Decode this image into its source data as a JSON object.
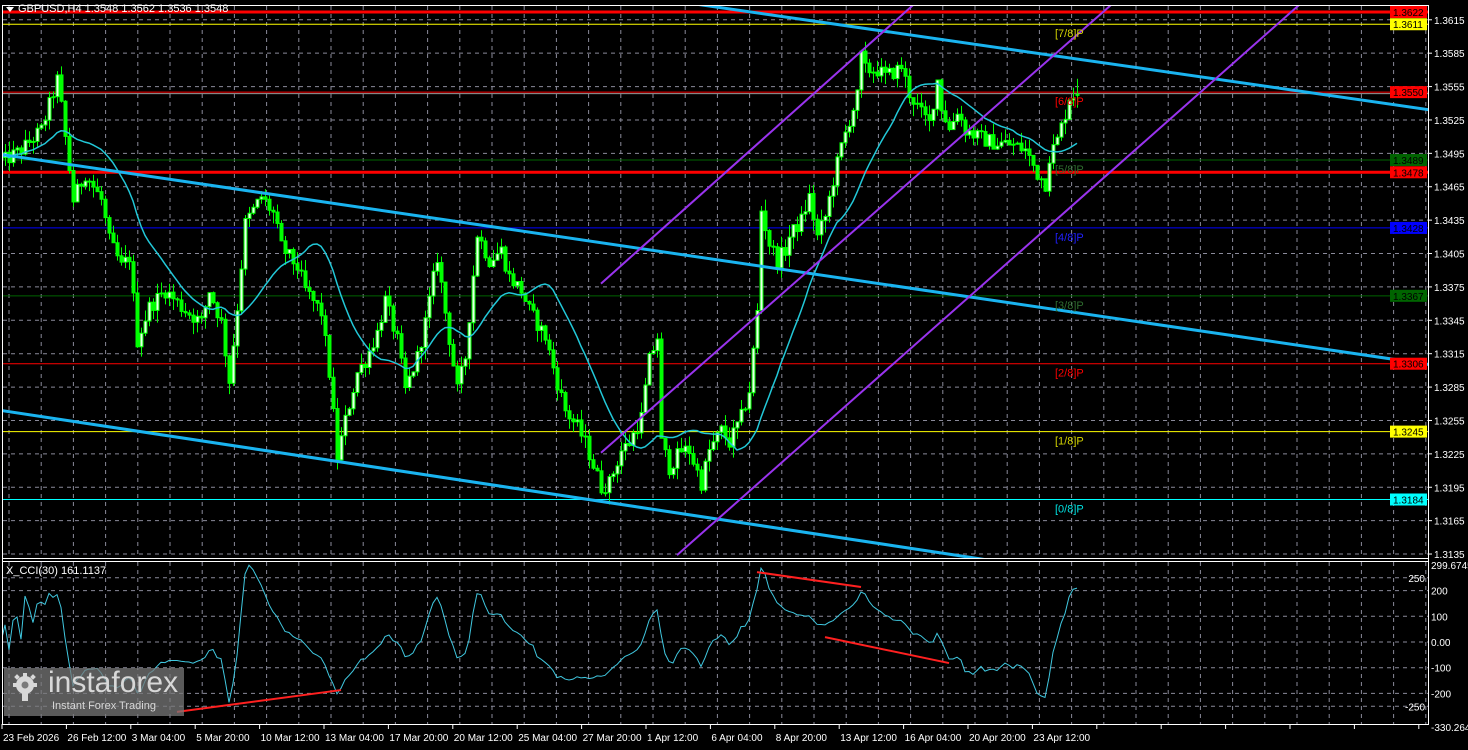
{
  "header": {
    "title": "GBPUSD,H4 1.3548 1.3562 1.3536 1.3548"
  },
  "cci_panel": {
    "label": "X_CCI(30) 161.1137"
  },
  "watermark": {
    "brand": "instaforex",
    "tagline": "Instant Forex Trading"
  },
  "chart_data": {
    "type": "candlestick",
    "timeframe": "H4",
    "candle_color": "#00ff00",
    "ylim": [
      1.3131,
      1.3628
    ],
    "grid": true,
    "y_ticks": [
      "1.3615",
      "1.3585",
      "1.3555",
      "1.3525",
      "1.3495",
      "1.3465",
      "1.3435",
      "1.3405",
      "1.3375",
      "1.3345",
      "1.3315",
      "1.3285",
      "1.3255",
      "1.3225",
      "1.3195",
      "1.3165",
      "1.3135"
    ],
    "x_tick_labels": [
      "23 Feb 2026",
      "26 Feb 12:00",
      "3 Mar 04:00",
      "5 Mar 20:00",
      "10 Mar 12:00",
      "13 Mar 04:00",
      "17 Mar 20:00",
      "20 Mar 12:00",
      "25 Mar 04:00",
      "27 Mar 20:00",
      "1 Apr 12:00",
      "6 Apr 04:00",
      "8 Apr 20:00",
      "13 Apr 12:00",
      "16 Apr 04:00",
      "20 Apr 20:00",
      "23 Apr 12:00"
    ],
    "price_path": [
      [
        1,
        1.3489
      ],
      [
        5,
        1.3498
      ],
      [
        10,
        1.3516
      ],
      [
        14,
        1.3561
      ],
      [
        15,
        1.3537
      ],
      [
        18,
        1.3453
      ],
      [
        21,
        1.3477
      ],
      [
        25,
        1.3453
      ],
      [
        27,
        1.3417
      ],
      [
        30,
        1.3393
      ],
      [
        32,
        1.3402
      ],
      [
        34,
        1.3327
      ],
      [
        37,
        1.3357
      ],
      [
        41,
        1.3372
      ],
      [
        45,
        1.3357
      ],
      [
        50,
        1.3343
      ],
      [
        52,
        1.3372
      ],
      [
        55,
        1.3343
      ],
      [
        57,
        1.3291
      ],
      [
        59,
        1.3357
      ],
      [
        61,
        1.3432
      ],
      [
        65,
        1.3456
      ],
      [
        68,
        1.3441
      ],
      [
        70,
        1.3411
      ],
      [
        74,
        1.3393
      ],
      [
        76,
        1.3372
      ],
      [
        80,
        1.3352
      ],
      [
        82,
        1.3298
      ],
      [
        84,
        1.3222
      ],
      [
        86,
        1.3255
      ],
      [
        89,
        1.3298
      ],
      [
        91,
        1.3309
      ],
      [
        94,
        1.3334
      ],
      [
        96,
        1.3363
      ],
      [
        99,
        1.3327
      ],
      [
        101,
        1.3282
      ],
      [
        104,
        1.3312
      ],
      [
        106,
        1.3343
      ],
      [
        109,
        1.3402
      ],
      [
        111,
        1.3352
      ],
      [
        114,
        1.3282
      ],
      [
        116,
        1.3312
      ],
      [
        119,
        1.3423
      ],
      [
        122,
        1.3399
      ],
      [
        125,
        1.3408
      ],
      [
        127,
        1.3384
      ],
      [
        130,
        1.3372
      ],
      [
        132,
        1.3354
      ],
      [
        136,
        1.333
      ],
      [
        139,
        1.3289
      ],
      [
        141,
        1.3264
      ],
      [
        144,
        1.3249
      ],
      [
        146,
        1.3235
      ],
      [
        150,
        1.3195
      ],
      [
        152,
        1.3199
      ],
      [
        155,
        1.3228
      ],
      [
        157,
        1.3235
      ],
      [
        160,
        1.3258
      ],
      [
        162,
        1.3309
      ],
      [
        164,
        1.333
      ],
      [
        165,
        1.3235
      ],
      [
        167,
        1.3213
      ],
      [
        170,
        1.3228
      ],
      [
        172,
        1.3228
      ],
      [
        175,
        1.3199
      ],
      [
        177,
        1.3228
      ],
      [
        180,
        1.3246
      ],
      [
        182,
        1.3235
      ],
      [
        185,
        1.3258
      ],
      [
        187,
        1.3282
      ],
      [
        189,
        1.3352
      ],
      [
        190,
        1.3444
      ],
      [
        192,
        1.3414
      ],
      [
        194,
        1.3399
      ],
      [
        196,
        1.3408
      ],
      [
        197,
        1.342
      ],
      [
        200,
        1.3435
      ],
      [
        202,
        1.3456
      ],
      [
        204,
        1.342
      ],
      [
        206,
        1.3438
      ],
      [
        208,
        1.3471
      ],
      [
        210,
        1.3501
      ],
      [
        212,
        1.3525
      ],
      [
        214,
        1.3546
      ],
      [
        215,
        1.3582
      ],
      [
        216,
        1.357
      ],
      [
        219,
        1.357
      ],
      [
        221,
        1.3564
      ],
      [
        224,
        1.357
      ],
      [
        225,
        1.3573
      ],
      [
        227,
        1.3549
      ],
      [
        230,
        1.3531
      ],
      [
        232,
        1.3522
      ],
      [
        234,
        1.3561
      ],
      [
        235,
        1.3537
      ],
      [
        237,
        1.3516
      ],
      [
        239,
        1.3534
      ],
      [
        241,
        1.3516
      ],
      [
        244,
        1.351
      ],
      [
        246,
        1.3507
      ],
      [
        249,
        1.3504
      ],
      [
        251,
        1.3504
      ],
      [
        254,
        1.3501
      ],
      [
        256,
        1.3498
      ],
      [
        259,
        1.3477
      ],
      [
        261,
        1.3468
      ],
      [
        262,
        1.3492
      ],
      [
        264,
        1.3507
      ],
      [
        266,
        1.3531
      ],
      [
        267,
        1.3546
      ],
      [
        269,
        1.3548
      ]
    ],
    "last_bar": {
      "open": 1.3548,
      "high": 1.3562,
      "low": 1.3536,
      "close": 1.3548
    },
    "moving_average": {
      "color": "#22c8d8"
    },
    "levels": [
      {
        "price": 1.3622,
        "value": "1.3622",
        "color": "#ff0000",
        "thick": true,
        "label": ""
      },
      {
        "price": 1.3611,
        "value": "1.3611",
        "color": "#ffff00",
        "thick": false,
        "label": "[7/8]P",
        "label_color": "#d4d400"
      },
      {
        "price": 1.355,
        "value": "1.3550",
        "color": "#ff0000",
        "thick": false,
        "label": "[6/8]P",
        "label_color": "#ff0000"
      },
      {
        "price": 1.3489,
        "value": "1.3489",
        "color": "#006400",
        "thick": false,
        "label": "[5/8]P",
        "label_color": "#2e6b2e"
      },
      {
        "price": 1.3478,
        "value": "1.3478",
        "color": "#ff0000",
        "thick": true,
        "label": ""
      },
      {
        "price": 1.3428,
        "value": "1.3428",
        "color": "#0000ff",
        "thick": false,
        "label": "[4/8]P",
        "label_color": "#2020ff"
      },
      {
        "price": 1.3367,
        "value": "1.3367",
        "color": "#006400",
        "thick": false,
        "label": "[3/8]P",
        "label_color": "#2e6b2e"
      },
      {
        "price": 1.3306,
        "value": "1.3306",
        "color": "#ff0000",
        "thick": false,
        "label": "[2/8]P",
        "label_color": "#ff0000"
      },
      {
        "price": 1.3245,
        "value": "1.3245",
        "color": "#ffff00",
        "thick": false,
        "label": "[1/8]P",
        "label_color": "#d4d400"
      },
      {
        "price": 1.3184,
        "value": "1.3184",
        "color": "#00ffff",
        "thick": false,
        "label": "[0/8]P",
        "label_color": "#00e0e0"
      }
    ],
    "trendlines": [
      {
        "from": [
          172,
          1.363
        ],
        "to": [
          367,
          1.3529
        ],
        "color": "#1ab4f0"
      },
      {
        "from": [
          0,
          1.3494
        ],
        "to": [
          367,
          1.33
        ],
        "color": "#1ab4f0"
      },
      {
        "from": [
          0,
          1.3264
        ],
        "to": [
          246,
          1.313
        ],
        "color": "#1ab4f0"
      }
    ],
    "channel": [
      {
        "from": [
          150,
          1.3378
        ],
        "to": [
          229.5,
          1.3633
        ],
        "color": "#9933ee"
      },
      {
        "from": [
          150,
          1.3226
        ],
        "to": [
          279,
          1.3633
        ],
        "color": "#9933ee"
      },
      {
        "from": [
          169,
          1.3134
        ],
        "to": [
          326,
          1.3633
        ],
        "color": "#9933ee"
      }
    ],
    "cci": {
      "name": "X_CCI(30)",
      "period": 30,
      "current": 161.1137,
      "color": "#40c8e0",
      "ylim": [
        -330.264,
        299.6745
      ],
      "y_ticks": [
        "299.6745",
        "250",
        "200",
        "100",
        "0.00",
        "-100",
        "-200",
        "-250",
        "-330.264"
      ],
      "divergences": [
        {
          "from": [
            44,
            -272
          ],
          "to": [
            85,
            -187
          ],
          "color": "#ff2020"
        },
        {
          "from": [
            189,
            272
          ],
          "to": [
            215,
            214
          ],
          "color": "#ff2020"
        },
        {
          "from": [
            206,
            19
          ],
          "to": [
            237,
            -82
          ],
          "color": "#ff2020"
        }
      ]
    }
  }
}
